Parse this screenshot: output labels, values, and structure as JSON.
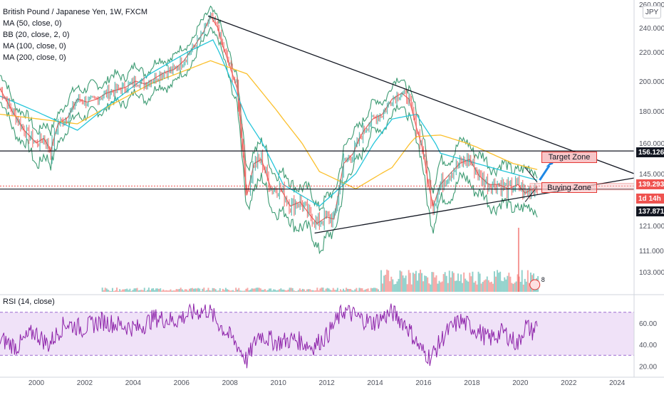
{
  "header": {
    "symbol_title": "British Pound / Japanese Yen, 1W, FXCM",
    "indicators": [
      "MA (50, close, 0)",
      "BB (20, close, 2, 0)",
      "MA (100, close, 0)",
      "MA (200, close, 0)"
    ],
    "currency_button": "JPY"
  },
  "price_tags": {
    "resistance": "156.126",
    "last": "139.293",
    "countdown": "1d 14h",
    "low": "137.871"
  },
  "annotations": {
    "target_zone": "Target Zone",
    "buying_zone": "Buying Zone",
    "event_count": "8"
  },
  "rsi_panel": {
    "label": "RSI (14, close)"
  },
  "colors": {
    "candle_up": "#26a69a",
    "candle_down": "#ef5350",
    "ma50": "#e53935",
    "ma100": "#26c6da",
    "ma200": "#fbc02d",
    "bb_bands": "#1b8a5a",
    "rsi_line": "#8e24aa",
    "rsi_band": "#e9d5f5",
    "trendline": "#131722",
    "arrow": "#1e88e5"
  },
  "chart_data": [
    {
      "type": "line",
      "title": "British Pound / Japanese Yen, 1W, FXCM",
      "x_ticks": [
        "2000",
        "2002",
        "2004",
        "2006",
        "2008",
        "2010",
        "2012",
        "2014",
        "2016",
        "2018",
        "2020",
        "2022",
        "2024"
      ],
      "y_ticks": [
        "260.000",
        "240.000",
        "220.000",
        "200.000",
        "180.000",
        "160.000",
        "145.000",
        "121.000",
        "111.000",
        "103.000"
      ],
      "xlim": [
        1998.8,
        2025.0
      ],
      "ylim": [
        98,
        262
      ],
      "series": [
        {
          "name": "GBPJPY close",
          "x": [
            1998.8,
            1999.3,
            1999.8,
            2000.3,
            2000.6,
            2000.9,
            2001.2,
            2001.6,
            2002.0,
            2002.4,
            2002.8,
            2003.2,
            2003.6,
            2004.0,
            2004.4,
            2004.8,
            2005.2,
            2005.6,
            2006.0,
            2006.4,
            2006.8,
            2007.2,
            2007.5,
            2007.8,
            2008.0,
            2008.3,
            2008.6,
            2008.8,
            2009.0,
            2009.3,
            2009.6,
            2010.0,
            2010.4,
            2010.8,
            2011.2,
            2011.6,
            2011.9,
            2012.3,
            2012.6,
            2013.0,
            2013.4,
            2013.8,
            2014.2,
            2014.6,
            2015.0,
            2015.4,
            2015.7,
            2016.0,
            2016.3,
            2016.5,
            2016.7,
            2017.0,
            2017.4,
            2017.8,
            2018.2,
            2018.6,
            2019.0,
            2019.4,
            2019.8,
            2020.2,
            2020.5,
            2020.8,
            2021.0
          ],
          "values": [
            195,
            180,
            168,
            160,
            163,
            156,
            172,
            176,
            188,
            186,
            188,
            192,
            194,
            196,
            200,
            198,
            202,
            206,
            208,
            214,
            224,
            236,
            250,
            240,
            225,
            210,
            195,
            162,
            135,
            150,
            152,
            138,
            138,
            130,
            132,
            126,
            122,
            125,
            124,
            150,
            155,
            167,
            175,
            178,
            188,
            192,
            188,
            170,
            155,
            140,
            130,
            140,
            145,
            150,
            152,
            144,
            140,
            140,
            138,
            140,
            136,
            138,
            139.3
          ]
        },
        {
          "name": "MA 200",
          "x": [
            1998.8,
            2002.0,
            2005.0,
            2007.5,
            2009.0,
            2010.5,
            2012.0,
            2013.5,
            2015.0,
            2016.0,
            2017.0,
            2018.5,
            2020.0,
            2021.0
          ],
          "values": [
            178,
            172,
            198,
            214,
            205,
            175,
            146,
            138,
            148,
            164,
            165,
            158,
            150,
            147
          ]
        },
        {
          "name": "MA 100",
          "x": [
            1998.8,
            2002.0,
            2005.0,
            2007.6,
            2009.0,
            2010.5,
            2012.0,
            2013.5,
            2015.0,
            2016.0,
            2017.0,
            2018.5,
            2020.0,
            2021.0
          ],
          "values": [
            190,
            168,
            205,
            230,
            175,
            140,
            130,
            145,
            175,
            178,
            155,
            150,
            145,
            142
          ]
        }
      ],
      "trendlines": [
        {
          "from": [
            2007.4,
            250
          ],
          "to": [
            2025.0,
            145
          ]
        },
        {
          "from": [
            2011.8,
            118
          ],
          "to": [
            2025.0,
            143
          ]
        }
      ],
      "horizontal_lines": [
        156.126,
        139.293,
        137.871
      ]
    },
    {
      "type": "line",
      "title": "RSI (14, close)",
      "y_ticks": [
        "60.00",
        "40.00",
        "20.00"
      ],
      "ylim": [
        15,
        85
      ],
      "band": [
        30,
        70
      ],
      "series": [
        {
          "name": "RSI",
          "x": [
            1998.8,
            1999.5,
            2000.2,
            2000.8,
            2001.5,
            2002.2,
            2003.0,
            2003.8,
            2004.5,
            2005.2,
            2006.0,
            2006.8,
            2007.4,
            2008.0,
            2008.6,
            2009.0,
            2009.5,
            2010.2,
            2011.0,
            2011.7,
            2012.3,
            2013.0,
            2013.6,
            2014.2,
            2015.0,
            2015.6,
            2016.2,
            2016.6,
            2017.2,
            2017.8,
            2018.4,
            2019.0,
            2019.6,
            2020.2,
            2020.5,
            2020.8,
            2021.0
          ],
          "values": [
            45,
            38,
            52,
            40,
            60,
            55,
            62,
            58,
            55,
            65,
            62,
            70,
            72,
            55,
            40,
            25,
            50,
            42,
            45,
            38,
            48,
            72,
            65,
            60,
            70,
            58,
            35,
            28,
            50,
            62,
            55,
            45,
            52,
            40,
            58,
            52,
            59
          ]
        }
      ]
    }
  ]
}
